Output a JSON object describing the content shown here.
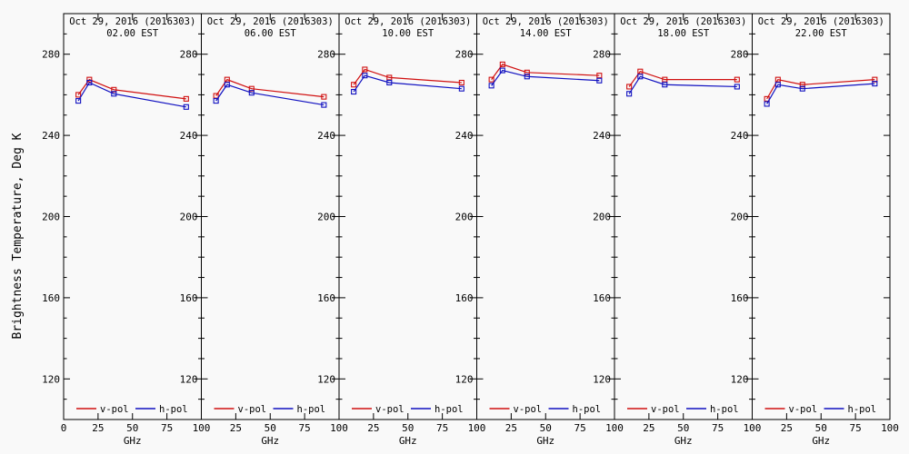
{
  "figure": {
    "background": "#f9f9f9",
    "axis_color": "#000000"
  },
  "chart_data": {
    "type": "line",
    "xlabel": "GHz",
    "ylabel": "Brightness Temperature, Deg K",
    "x_ghz": [
      10.65,
      18.7,
      36.5,
      89
    ],
    "xlim": [
      0,
      100
    ],
    "ylim": [
      100,
      300
    ],
    "xticks": [
      0,
      25,
      50,
      75,
      100
    ],
    "yticks": [
      120,
      160,
      200,
      240,
      280
    ],
    "y_minor_step": 10,
    "grid": "off",
    "legend_position": "bottom-inside-each-panel",
    "legend": [
      {
        "label": "v-pol",
        "color": "#d01010"
      },
      {
        "label": "h-pol",
        "color": "#1010c0"
      }
    ],
    "panels": [
      {
        "title": "Oct 29, 2016 (2016303)",
        "time": "02.00 EST",
        "series": [
          {
            "name": "v-pol",
            "color": "#d01010",
            "values": [
              260,
              267.5,
              262.5,
              258
            ]
          },
          {
            "name": "h-pol",
            "color": "#1010c0",
            "values": [
              257,
              266,
              260.5,
              254
            ]
          }
        ]
      },
      {
        "title": "Oct 29, 2016 (2016303)",
        "time": "06.00 EST",
        "series": [
          {
            "name": "v-pol",
            "color": "#d01010",
            "values": [
              259.5,
              267.5,
              263,
              259
            ]
          },
          {
            "name": "h-pol",
            "color": "#1010c0",
            "values": [
              257,
              265,
              261,
              255
            ]
          }
        ]
      },
      {
        "title": "Oct 29, 2016 (2016303)",
        "time": "10.00 EST",
        "series": [
          {
            "name": "v-pol",
            "color": "#d01010",
            "values": [
              265,
              272.5,
              268.5,
              266
            ]
          },
          {
            "name": "h-pol",
            "color": "#1010c0",
            "values": [
              261.5,
              269.5,
              266,
              263
            ]
          }
        ]
      },
      {
        "title": "Oct 29, 2016 (2016303)",
        "time": "14.00 EST",
        "series": [
          {
            "name": "v-pol",
            "color": "#d01010",
            "values": [
              267.5,
              275,
              271,
              269.5
            ]
          },
          {
            "name": "h-pol",
            "color": "#1010c0",
            "values": [
              264.5,
              272,
              269,
              267
            ]
          }
        ]
      },
      {
        "title": "Oct 29, 2016 (2016303)",
        "time": "18.00 EST",
        "series": [
          {
            "name": "v-pol",
            "color": "#d01010",
            "values": [
              264,
              271.5,
              267.5,
              267.5
            ]
          },
          {
            "name": "h-pol",
            "color": "#1010c0",
            "values": [
              260.5,
              269,
              265,
              264
            ]
          }
        ]
      },
      {
        "title": "Oct 29, 2016 (2016303)",
        "time": "22.00 EST",
        "series": [
          {
            "name": "v-pol",
            "color": "#d01010",
            "values": [
              258,
              267.5,
              265,
              267.5
            ]
          },
          {
            "name": "h-pol",
            "color": "#1010c0",
            "values": [
              255.5,
              265,
              263,
              265.5
            ]
          }
        ]
      }
    ]
  }
}
